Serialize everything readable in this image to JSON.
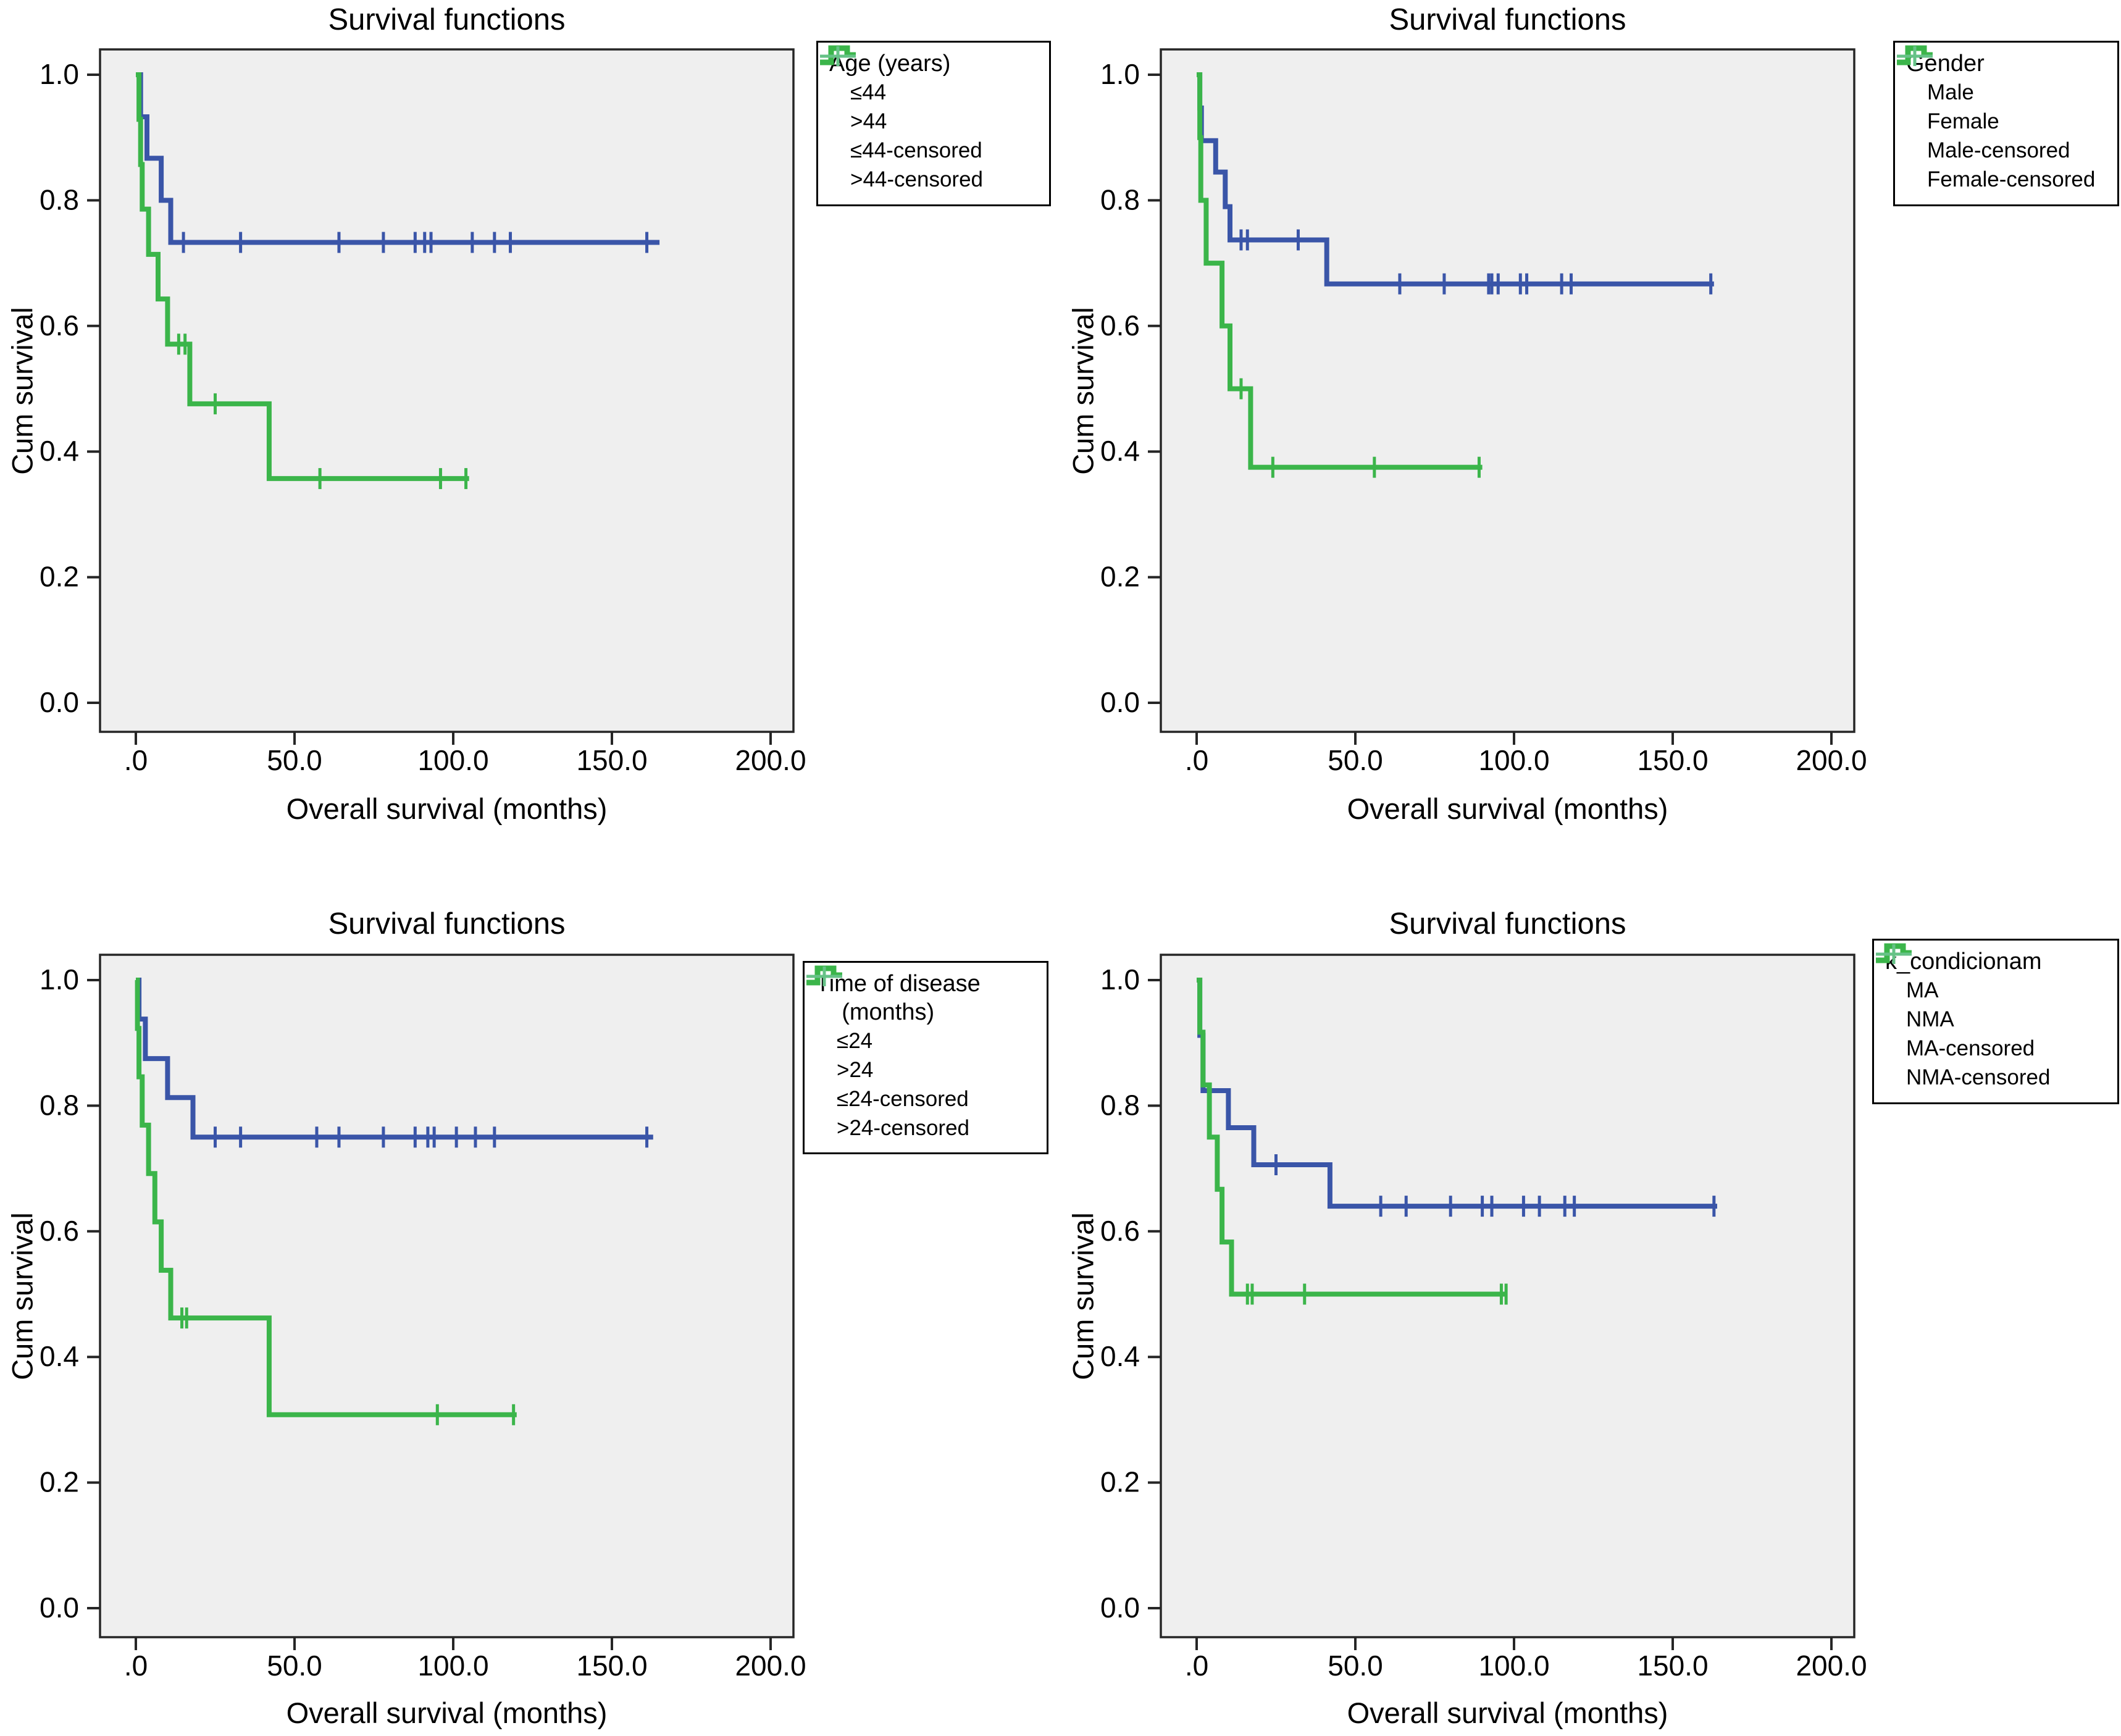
{
  "page": {
    "background": "#ffffff",
    "description": "Four Kaplan-Meier survival plots"
  },
  "colors": {
    "blue": "#3A55A8",
    "green": "#3BB54A",
    "blue_censored": "#8B9AD2",
    "green_censored": "#66C287",
    "plot_bg": "#EFEFEF",
    "axis": "#262626",
    "text": "#000000"
  },
  "chart_data": [
    {
      "id": "age",
      "type": "line",
      "title": "Survival functions",
      "xlabel": "Overall survival (months)",
      "ylabel": "Cum survival",
      "xlim": [
        -11,
        212
      ],
      "ylim": [
        -0.05,
        1.04
      ],
      "grid": false,
      "legend_position": "top-right-outside",
      "x_ticks": [
        {
          "v": 0,
          "label": ".0"
        },
        {
          "v": 50,
          "label": "50.0"
        },
        {
          "v": 100,
          "label": "100.0"
        },
        {
          "v": 150,
          "label": "150.0"
        },
        {
          "v": 200,
          "label": "200.0"
        }
      ],
      "y_ticks": [
        {
          "v": 0,
          "label": "0.0"
        },
        {
          "v": 0.2,
          "label": "0.2"
        },
        {
          "v": 0.4,
          "label": "0.4"
        },
        {
          "v": 0.6,
          "label": "0.6"
        },
        {
          "v": 0.8,
          "label": "0.8"
        },
        {
          "v": 1,
          "label": "1.0"
        }
      ],
      "legend": {
        "title_lines": [
          "Age (years)"
        ],
        "entries": [
          {
            "label": "≤44",
            "glyph": "step",
            "color": "#3A55A8"
          },
          {
            "label": ">44",
            "glyph": "step",
            "color": "#3BB54A"
          },
          {
            "label": "≤44-censored",
            "glyph": "plus",
            "color": "#8B9AD2"
          },
          {
            "label": ">44-censored",
            "glyph": "plus",
            "color": "#66C287"
          }
        ]
      },
      "series": [
        {
          "name": "≤44",
          "color": "#3A55A8",
          "steps": [
            [
              0,
              1.0
            ],
            [
              1.5,
              0.933
            ],
            [
              3.5,
              0.867
            ],
            [
              8,
              0.8
            ],
            [
              11,
              0.733
            ]
          ],
          "end": 165,
          "censors": [
            [
              15,
              0.733
            ],
            [
              33,
              0.733
            ],
            [
              64,
              0.733
            ],
            [
              78,
              0.733
            ],
            [
              88,
              0.733
            ],
            [
              91,
              0.733
            ],
            [
              93,
              0.733
            ],
            [
              106,
              0.733
            ],
            [
              113,
              0.733
            ],
            [
              118,
              0.733
            ],
            [
              161,
              0.733
            ]
          ]
        },
        {
          "name": ">44",
          "color": "#3BB54A",
          "steps": [
            [
              0,
              1.0
            ],
            [
              1,
              0.929
            ],
            [
              1.5,
              0.857
            ],
            [
              2,
              0.786
            ],
            [
              4,
              0.714
            ],
            [
              7,
              0.643
            ],
            [
              10,
              0.571
            ],
            [
              17,
              0.476
            ],
            [
              42,
              0.357
            ]
          ],
          "end": 105,
          "censors": [
            [
              13.5,
              0.571
            ],
            [
              15.5,
              0.571
            ],
            [
              25,
              0.476
            ],
            [
              58,
              0.357
            ],
            [
              96,
              0.357
            ],
            [
              104,
              0.357
            ]
          ]
        }
      ]
    },
    {
      "id": "gender",
      "type": "line",
      "title": "Survival functions",
      "xlabel": "Overall survival (months)",
      "ylabel": "Cum survival",
      "xlim": [
        -11,
        212
      ],
      "ylim": [
        -0.05,
        1.04
      ],
      "grid": false,
      "legend_position": "top-right-outside",
      "x_ticks": [
        {
          "v": 0,
          "label": ".0"
        },
        {
          "v": 50,
          "label": "50.0"
        },
        {
          "v": 100,
          "label": "100.0"
        },
        {
          "v": 150,
          "label": "150.0"
        },
        {
          "v": 200,
          "label": "200.0"
        }
      ],
      "y_ticks": [
        {
          "v": 0,
          "label": "0.0"
        },
        {
          "v": 0.2,
          "label": "0.2"
        },
        {
          "v": 0.4,
          "label": "0.4"
        },
        {
          "v": 0.6,
          "label": "0.6"
        },
        {
          "v": 0.8,
          "label": "0.8"
        },
        {
          "v": 1,
          "label": "1.0"
        }
      ],
      "legend": {
        "title_lines": [
          "Gender"
        ],
        "entries": [
          {
            "label": "Male",
            "glyph": "step",
            "color": "#3A55A8"
          },
          {
            "label": "Female",
            "glyph": "step",
            "color": "#3BB54A"
          },
          {
            "label": "Male-censored",
            "glyph": "plus",
            "color": "#8B9AD2"
          },
          {
            "label": "Female-censored",
            "glyph": "plus",
            "color": "#66C287"
          }
        ]
      },
      "series": [
        {
          "name": "Male",
          "color": "#3A55A8",
          "steps": [
            [
              0,
              1.0
            ],
            [
              1,
              0.947
            ],
            [
              1.5,
              0.895
            ],
            [
              6,
              0.845
            ],
            [
              9,
              0.79
            ],
            [
              10.5,
              0.737
            ],
            [
              41,
              0.667
            ]
          ],
          "end": 163,
          "censors": [
            [
              14,
              0.737
            ],
            [
              16,
              0.737
            ],
            [
              32,
              0.737
            ],
            [
              64,
              0.667
            ],
            [
              78,
              0.667
            ],
            [
              92,
              0.667
            ],
            [
              93,
              0.667
            ],
            [
              95,
              0.667
            ],
            [
              102,
              0.667
            ],
            [
              104,
              0.667
            ],
            [
              115,
              0.667
            ],
            [
              118,
              0.667
            ],
            [
              162,
              0.667
            ]
          ]
        },
        {
          "name": "Female",
          "color": "#3BB54A",
          "steps": [
            [
              0,
              1.0
            ],
            [
              1,
              0.9
            ],
            [
              1.3,
              0.8
            ],
            [
              3,
              0.7
            ],
            [
              8,
              0.6
            ],
            [
              10.5,
              0.5
            ],
            [
              17,
              0.375
            ]
          ],
          "end": 90,
          "censors": [
            [
              14,
              0.5
            ],
            [
              24,
              0.375
            ],
            [
              56,
              0.375
            ],
            [
              89,
              0.375
            ]
          ]
        }
      ]
    },
    {
      "id": "time-of-disease",
      "type": "line",
      "title": "Survival functions",
      "xlabel": "Overall survival (months)",
      "ylabel": "Cum survival",
      "xlim": [
        -11,
        212
      ],
      "ylim": [
        -0.05,
        1.04
      ],
      "grid": false,
      "legend_position": "top-right-outside",
      "x_ticks": [
        {
          "v": 0,
          "label": ".0"
        },
        {
          "v": 50,
          "label": "50.0"
        },
        {
          "v": 100,
          "label": "100.0"
        },
        {
          "v": 150,
          "label": "150.0"
        },
        {
          "v": 200,
          "label": "200.0"
        }
      ],
      "y_ticks": [
        {
          "v": 0,
          "label": "0.0"
        },
        {
          "v": 0.2,
          "label": "0.2"
        },
        {
          "v": 0.4,
          "label": "0.4"
        },
        {
          "v": 0.6,
          "label": "0.6"
        },
        {
          "v": 0.8,
          "label": "0.8"
        },
        {
          "v": 1,
          "label": "1.0"
        }
      ],
      "legend": {
        "title_lines": [
          "Time of disease",
          "    (months)"
        ],
        "entries": [
          {
            "label": "≤24",
            "glyph": "step",
            "color": "#3A55A8"
          },
          {
            "label": ">24",
            "glyph": "step",
            "color": "#3BB54A"
          },
          {
            "label": "≤24-censored",
            "glyph": "plus",
            "color": "#8B9AD2"
          },
          {
            "label": ">24-censored",
            "glyph": "plus",
            "color": "#66C287"
          }
        ]
      },
      "series": [
        {
          "name": "≤24",
          "color": "#3A55A8",
          "steps": [
            [
              0,
              1.0
            ],
            [
              1,
              0.938
            ],
            [
              3,
              0.875
            ],
            [
              10,
              0.813
            ],
            [
              18,
              0.75
            ]
          ],
          "end": 163,
          "censors": [
            [
              25,
              0.75
            ],
            [
              33,
              0.75
            ],
            [
              57,
              0.75
            ],
            [
              64,
              0.75
            ],
            [
              78,
              0.75
            ],
            [
              88,
              0.75
            ],
            [
              92,
              0.75
            ],
            [
              94,
              0.75
            ],
            [
              101,
              0.75
            ],
            [
              107,
              0.75
            ],
            [
              113,
              0.75
            ],
            [
              161,
              0.75
            ]
          ]
        },
        {
          "name": ">24",
          "color": "#3BB54A",
          "steps": [
            [
              0,
              1.0
            ],
            [
              0.5,
              0.923
            ],
            [
              1,
              0.846
            ],
            [
              2,
              0.769
            ],
            [
              4,
              0.692
            ],
            [
              6,
              0.615
            ],
            [
              8,
              0.538
            ],
            [
              11,
              0.462
            ],
            [
              42,
              0.308
            ]
          ],
          "end": 120,
          "censors": [
            [
              14.5,
              0.462
            ],
            [
              16,
              0.462
            ],
            [
              95,
              0.308
            ],
            [
              119,
              0.308
            ]
          ]
        }
      ]
    },
    {
      "id": "k-condicionam",
      "type": "line",
      "title": "Survival functions",
      "xlabel": "Overall survival (months)",
      "ylabel": "Cum survival",
      "xlim": [
        -11,
        212
      ],
      "ylim": [
        -0.05,
        1.04
      ],
      "grid": false,
      "legend_position": "top-right-outside",
      "x_ticks": [
        {
          "v": 0,
          "label": ".0"
        },
        {
          "v": 50,
          "label": "50.0"
        },
        {
          "v": 100,
          "label": "100.0"
        },
        {
          "v": 150,
          "label": "150.0"
        },
        {
          "v": 200,
          "label": "200.0"
        }
      ],
      "y_ticks": [
        {
          "v": 0,
          "label": "0.0"
        },
        {
          "v": 0.2,
          "label": "0.2"
        },
        {
          "v": 0.4,
          "label": "0.4"
        },
        {
          "v": 0.6,
          "label": "0.6"
        },
        {
          "v": 0.8,
          "label": "0.8"
        },
        {
          "v": 1,
          "label": "1.0"
        }
      ],
      "legend": {
        "title_lines": [
          "k_condicionam"
        ],
        "entries": [
          {
            "label": "MA",
            "glyph": "step",
            "color": "#3A55A8"
          },
          {
            "label": "NMA",
            "glyph": "step",
            "color": "#3BB54A"
          },
          {
            "label": "MA-censored",
            "glyph": "plus",
            "color": "#8B9AD2"
          },
          {
            "label": "NMA-censored",
            "glyph": "plus",
            "color": "#66C287"
          }
        ]
      },
      "series": [
        {
          "name": "MA",
          "color": "#3A55A8",
          "steps": [
            [
              0,
              1.0
            ],
            [
              1,
              0.912
            ],
            [
              2,
              0.824
            ],
            [
              10,
              0.765
            ],
            [
              18,
              0.706
            ],
            [
              42,
              0.64
            ]
          ],
          "end": 164,
          "censors": [
            [
              25,
              0.706
            ],
            [
              58,
              0.64
            ],
            [
              66,
              0.64
            ],
            [
              80,
              0.64
            ],
            [
              90,
              0.64
            ],
            [
              93,
              0.64
            ],
            [
              103,
              0.64
            ],
            [
              108,
              0.64
            ],
            [
              116,
              0.64
            ],
            [
              119,
              0.64
            ],
            [
              163,
              0.64
            ]
          ]
        },
        {
          "name": "NMA",
          "color": "#3BB54A",
          "steps": [
            [
              0,
              1.0
            ],
            [
              1,
              0.917
            ],
            [
              2,
              0.833
            ],
            [
              4,
              0.75
            ],
            [
              6.5,
              0.667
            ],
            [
              8,
              0.583
            ],
            [
              11,
              0.5
            ]
          ],
          "end": 97.5,
          "censors": [
            [
              16,
              0.5
            ],
            [
              17.5,
              0.5
            ],
            [
              34,
              0.5
            ],
            [
              96,
              0.5
            ],
            [
              97.5,
              0.5
            ]
          ]
        }
      ]
    }
  ]
}
